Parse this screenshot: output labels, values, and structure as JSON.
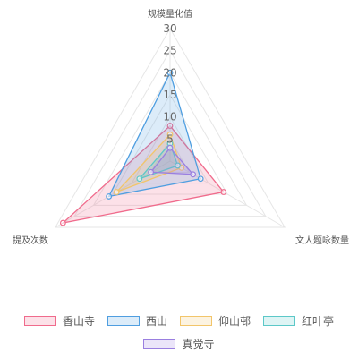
{
  "chart_data": {
    "type": "radar",
    "axes": [
      "规模量化值",
      "文人题咏数量",
      "提及次数"
    ],
    "scale": {
      "min": 0,
      "max": 30,
      "step": 5
    },
    "tick_labels": [
      "5",
      "10",
      "15",
      "20",
      "25",
      "30"
    ],
    "grid": true,
    "legend_position": "bottom",
    "series": [
      {
        "name": "香山寺",
        "values": [
          8,
          14,
          28
        ],
        "color": "#f06b8c"
      },
      {
        "name": "西山",
        "values": [
          20,
          8,
          16
        ],
        "color": "#4f9ee0"
      },
      {
        "name": "仰山邨",
        "values": [
          6,
          3,
          14
        ],
        "color": "#f2c56a"
      },
      {
        "name": "红叶亭",
        "values": [
          4,
          2,
          8
        ],
        "color": "#5cc8c8"
      },
      {
        "name": "真觉寺",
        "values": [
          3,
          6,
          5
        ],
        "color": "#9a7fe0"
      }
    ]
  }
}
